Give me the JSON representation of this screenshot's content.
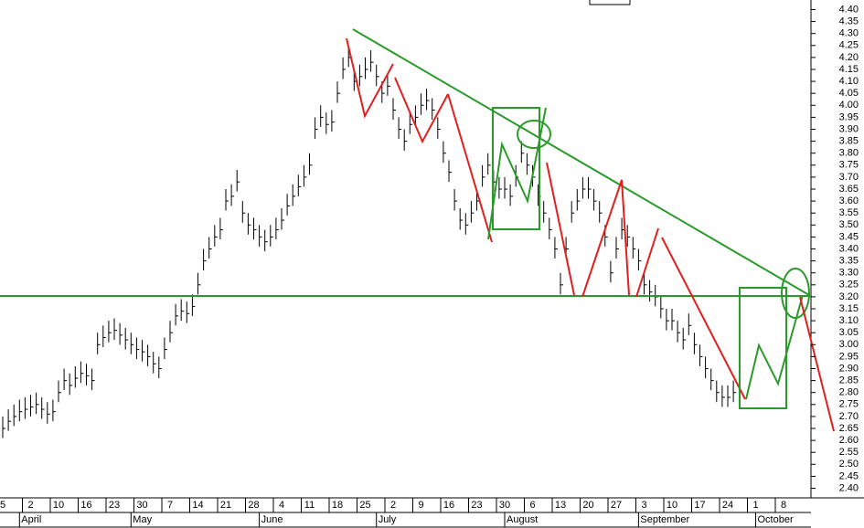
{
  "chart_data": {
    "type": "hlc",
    "categories": [
      "5",
      null,
      null,
      null,
      null,
      "2",
      null,
      null,
      null,
      null,
      "10",
      null,
      null,
      null,
      null,
      "16",
      null,
      null,
      null,
      null,
      "23",
      null,
      null,
      null,
      null,
      "30",
      null,
      null,
      null,
      null,
      "7",
      null,
      null,
      null,
      null,
      "14",
      null,
      null,
      null,
      null,
      "21",
      null,
      null,
      null,
      null,
      "28",
      null,
      null,
      null,
      null,
      "4",
      null,
      null,
      null,
      null,
      "11",
      null,
      null,
      null,
      null,
      "18",
      null,
      null,
      null,
      null,
      "25",
      null,
      null,
      null,
      null,
      "2",
      null,
      null,
      null,
      null,
      "9",
      null,
      null,
      null,
      null,
      "16",
      null,
      null,
      null,
      null,
      "23",
      null,
      null,
      null,
      null,
      "30",
      null,
      null,
      null,
      null,
      "6",
      null,
      null,
      null,
      null,
      "13",
      null,
      null,
      null,
      null,
      "20",
      null,
      null,
      null,
      null,
      "27",
      null,
      null,
      null,
      null,
      "3",
      null,
      null,
      null,
      null,
      "10",
      null,
      null,
      null,
      null,
      "17",
      null,
      null,
      null,
      null,
      "24",
      null,
      null,
      null,
      null,
      "1",
      null,
      null,
      null,
      null,
      "8",
      null,
      null,
      null,
      null
    ],
    "months": [
      null,
      null,
      null,
      "April",
      null,
      null,
      null,
      null,
      null,
      null,
      null,
      null,
      null,
      null,
      null,
      null,
      null,
      null,
      null,
      null,
      null,
      null,
      null,
      "May",
      null,
      null,
      null,
      null,
      null,
      null,
      null,
      null,
      null,
      null,
      null,
      null,
      null,
      null,
      null,
      null,
      null,
      null,
      null,
      null,
      null,
      null,
      "June",
      null,
      null,
      null,
      null,
      null,
      null,
      null,
      null,
      null,
      null,
      null,
      null,
      null,
      null,
      null,
      null,
      null,
      null,
      null,
      null,
      "July",
      null,
      null,
      null,
      null,
      null,
      null,
      null,
      null,
      null,
      null,
      null,
      null,
      null,
      null,
      null,
      null,
      null,
      null,
      null,
      null,
      null,
      null,
      "August",
      null,
      null,
      null,
      null,
      null,
      null,
      null,
      null,
      null,
      null,
      null,
      null,
      null,
      null,
      null,
      null,
      null,
      null,
      null,
      null,
      null,
      null,
      null,
      "September",
      null,
      null,
      null,
      null,
      null,
      null,
      null,
      null,
      null,
      null,
      null,
      null,
      null,
      null,
      null,
      null,
      null,
      null,
      null,
      null,
      "October",
      null,
      null,
      null,
      null,
      null,
      null,
      null,
      null,
      null
    ],
    "high": [
      2.7,
      2.73,
      2.75,
      2.77,
      2.78,
      2.79,
      2.8,
      2.78,
      2.76,
      2.77,
      2.85,
      2.9,
      2.88,
      2.91,
      2.93,
      2.92,
      2.9,
      3.05,
      3.08,
      3.1,
      3.11,
      3.09,
      3.07,
      3.05,
      3.03,
      3.02,
      3.0,
      2.97,
      2.95,
      3.03,
      3.1,
      3.17,
      3.19,
      3.18,
      3.21,
      3.3,
      3.4,
      3.45,
      3.5,
      3.53,
      3.65,
      3.67,
      3.73,
      3.6,
      3.55,
      3.53,
      3.5,
      3.48,
      3.5,
      3.53,
      3.57,
      3.63,
      3.67,
      3.71,
      3.75,
      3.8,
      3.95,
      4.0,
      3.97,
      3.98,
      4.1,
      4.2,
      4.25,
      4.15,
      4.17,
      4.2,
      4.23,
      4.17,
      4.1,
      4.13,
      4.03,
      3.95,
      3.9,
      3.97,
      4.0,
      4.05,
      4.07,
      4.03,
      3.95,
      3.85,
      3.77,
      3.65,
      3.57,
      3.55,
      3.6,
      3.65,
      3.75,
      3.8,
      3.73,
      3.7,
      3.7,
      3.67,
      3.75,
      3.85,
      3.8,
      3.75,
      3.67,
      3.6,
      3.53,
      3.45,
      3.3,
      3.45,
      3.6,
      3.65,
      3.7,
      3.7,
      3.65,
      3.6,
      3.5,
      3.35,
      3.45,
      3.53,
      3.5,
      3.45,
      3.4,
      3.3,
      3.27,
      3.25,
      3.2,
      3.15,
      3.15,
      3.1,
      3.07,
      3.13,
      3.05,
      3.0,
      2.95,
      2.9,
      2.85,
      2.83,
      2.83,
      2.85,
      null,
      null,
      null,
      null,
      null,
      null,
      null,
      null,
      null,
      null,
      null,
      null,
      null
    ],
    "low": [
      2.61,
      2.64,
      2.66,
      2.68,
      2.69,
      2.7,
      2.71,
      2.69,
      2.67,
      2.68,
      2.76,
      2.81,
      2.79,
      2.82,
      2.84,
      2.83,
      2.81,
      2.96,
      2.99,
      3.01,
      3.02,
      3.0,
      2.98,
      2.96,
      2.94,
      2.93,
      2.91,
      2.88,
      2.86,
      2.94,
      3.01,
      3.08,
      3.1,
      3.09,
      3.12,
      3.21,
      3.31,
      3.36,
      3.41,
      3.44,
      3.56,
      3.58,
      3.64,
      3.51,
      3.46,
      3.44,
      3.41,
      3.39,
      3.41,
      3.44,
      3.48,
      3.54,
      3.58,
      3.62,
      3.66,
      3.71,
      3.86,
      3.91,
      3.88,
      3.89,
      4.01,
      4.11,
      4.16,
      4.06,
      4.08,
      4.11,
      4.14,
      4.08,
      4.01,
      4.04,
      3.94,
      3.86,
      3.81,
      3.88,
      3.91,
      3.96,
      3.98,
      3.94,
      3.86,
      3.76,
      3.68,
      3.56,
      3.48,
      3.46,
      3.51,
      3.56,
      3.66,
      3.71,
      3.64,
      3.61,
      3.61,
      3.58,
      3.66,
      3.76,
      3.71,
      3.66,
      3.58,
      3.51,
      3.44,
      3.36,
      3.21,
      3.36,
      3.51,
      3.56,
      3.61,
      3.61,
      3.56,
      3.51,
      3.41,
      3.26,
      3.36,
      3.44,
      3.41,
      3.36,
      3.31,
      3.21,
      3.18,
      3.16,
      3.11,
      3.06,
      3.06,
      3.01,
      2.98,
      3.04,
      2.96,
      2.91,
      2.86,
      2.81,
      2.76,
      2.74,
      2.74,
      2.76,
      null,
      null,
      null,
      null,
      null,
      null,
      null,
      null,
      null,
      null,
      null,
      null,
      null
    ],
    "close": [
      2.65,
      2.68,
      2.7,
      2.72,
      2.73,
      2.74,
      2.75,
      2.73,
      2.71,
      2.72,
      2.8,
      2.85,
      2.83,
      2.86,
      2.88,
      2.87,
      2.85,
      3.0,
      3.03,
      3.05,
      3.06,
      3.04,
      3.02,
      3.0,
      2.98,
      2.97,
      2.95,
      2.92,
      2.9,
      2.98,
      3.05,
      3.12,
      3.14,
      3.13,
      3.16,
      3.25,
      3.35,
      3.4,
      3.45,
      3.48,
      3.6,
      3.62,
      3.68,
      3.55,
      3.5,
      3.48,
      3.45,
      3.43,
      3.45,
      3.48,
      3.52,
      3.58,
      3.62,
      3.66,
      3.7,
      3.75,
      3.9,
      3.95,
      3.92,
      3.93,
      4.05,
      4.15,
      4.2,
      4.1,
      4.12,
      4.15,
      4.18,
      4.12,
      4.05,
      4.08,
      3.98,
      3.9,
      3.85,
      3.92,
      3.95,
      4.0,
      4.02,
      3.98,
      3.9,
      3.8,
      3.72,
      3.6,
      3.52,
      3.5,
      3.55,
      3.6,
      3.7,
      3.75,
      3.68,
      3.65,
      3.65,
      3.62,
      3.7,
      3.8,
      3.75,
      3.7,
      3.62,
      3.55,
      3.48,
      3.4,
      3.25,
      3.4,
      3.55,
      3.6,
      3.65,
      3.65,
      3.6,
      3.55,
      3.45,
      3.3,
      3.4,
      3.48,
      3.45,
      3.4,
      3.35,
      3.25,
      3.22,
      3.2,
      3.15,
      3.1,
      3.1,
      3.05,
      3.02,
      3.08,
      3.0,
      2.95,
      2.9,
      2.85,
      2.8,
      2.78,
      2.78,
      2.8,
      null,
      null,
      null,
      null,
      null,
      null,
      null,
      null,
      null,
      null,
      null,
      null,
      null
    ],
    "color": "#000000",
    "ylim": [
      2.36,
      4.44
    ],
    "yticks": [
      {
        "value": 2.4,
        "label": "2.40"
      },
      2.45,
      {
        "value": 2.5,
        "label": "2.50"
      },
      2.55,
      {
        "value": 2.6,
        "label": "2.60"
      },
      2.65,
      {
        "value": 2.7,
        "label": "2.70"
      },
      2.75,
      {
        "value": 2.8,
        "label": "2.80"
      },
      2.85,
      {
        "value": 2.9,
        "label": "2.90"
      },
      2.95,
      {
        "value": 3.0,
        "label": "3.00"
      },
      3.05,
      {
        "value": 3.1,
        "label": "3.10"
      },
      3.15,
      {
        "value": 3.2,
        "label": "3.20"
      },
      3.25,
      {
        "value": 3.3,
        "label": "3.30"
      },
      3.35,
      {
        "value": 3.4,
        "label": "3.40"
      },
      3.45,
      {
        "value": 3.5,
        "label": "3.50"
      },
      3.55,
      {
        "value": 3.6,
        "label": "3.60"
      },
      3.65,
      {
        "value": 3.7,
        "label": "3.70"
      },
      3.75,
      {
        "value": 3.8,
        "label": "3.80"
      },
      3.85,
      {
        "value": 3.9,
        "label": "3.90"
      },
      3.95,
      {
        "value": 4.0,
        "label": "4.00"
      },
      4.05,
      {
        "value": 4.1,
        "label": "4.10"
      },
      4.15,
      {
        "value": 4.2,
        "label": "4.20"
      },
      4.25,
      {
        "value": 4.3,
        "label": "4.30"
      },
      4.35,
      {
        "value": 4.4,
        "label": "4.40"
      }
    ],
    "grid": false
  }
}
